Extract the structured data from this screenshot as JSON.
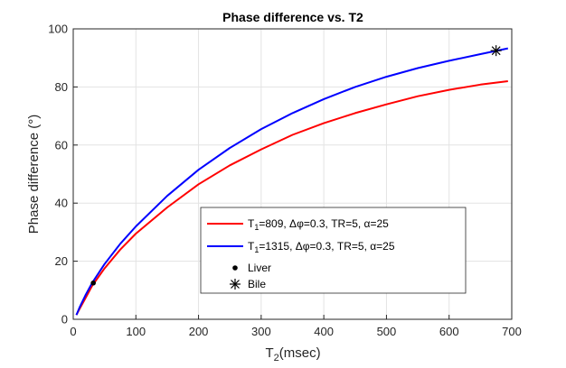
{
  "chart_data": {
    "type": "line",
    "title": "Phase difference vs. T2",
    "xlabel_main": "T",
    "xlabel_sub": "2",
    "xlabel_rest": "(msec)",
    "ylabel": "Phase difference (°)",
    "xlim": [
      0,
      700
    ],
    "ylim": [
      0,
      100
    ],
    "xticks": [
      0,
      100,
      200,
      300,
      400,
      500,
      600,
      700
    ],
    "yticks": [
      0,
      20,
      40,
      60,
      80,
      100
    ],
    "grid": true,
    "series": [
      {
        "name": "T1=809, Δφ=0.3, TR=5, α=25",
        "color": "#ff0000",
        "x": [
          5,
          10,
          20,
          30,
          50,
          75,
          100,
          150,
          200,
          250,
          300,
          350,
          400,
          450,
          500,
          550,
          600,
          650,
          694
        ],
        "y": [
          1.5,
          3.5,
          7.5,
          11.5,
          17.5,
          24,
          29.5,
          38.5,
          46.5,
          53,
          58.5,
          63.5,
          67.5,
          71,
          74,
          76.8,
          79,
          80.8,
          82
        ]
      },
      {
        "name": "T1=1315, Δφ=0.3, TR=5, α=25",
        "color": "#0000ff",
        "x": [
          5,
          10,
          20,
          30,
          50,
          75,
          100,
          150,
          200,
          250,
          300,
          350,
          400,
          450,
          500,
          550,
          600,
          650,
          694
        ],
        "y": [
          1.5,
          4,
          8.5,
          12.5,
          19,
          26,
          32,
          42.5,
          51.5,
          59,
          65.5,
          71,
          75.8,
          80,
          83.5,
          86.5,
          89,
          91.3,
          93.3
        ]
      }
    ],
    "points": [
      {
        "name": "Liver",
        "marker": "dot",
        "x": 32,
        "y": 12.5
      },
      {
        "name": "Bile",
        "marker": "asterisk",
        "x": 675,
        "y": 92.5
      }
    ],
    "legend": {
      "position": "bottom-center",
      "entries": [
        {
          "sym": "T",
          "sub": "1",
          "rest": "=809, Δφ=0.3, TR=5, α=25",
          "color": "#ff0000",
          "kind": "line"
        },
        {
          "sym": "T",
          "sub": "1",
          "rest": "=1315, Δφ=0.3, TR=5, α=25",
          "color": "#0000ff",
          "kind": "line"
        },
        {
          "label": "Liver",
          "kind": "dot"
        },
        {
          "label": "Bile",
          "kind": "asterisk"
        }
      ]
    }
  }
}
